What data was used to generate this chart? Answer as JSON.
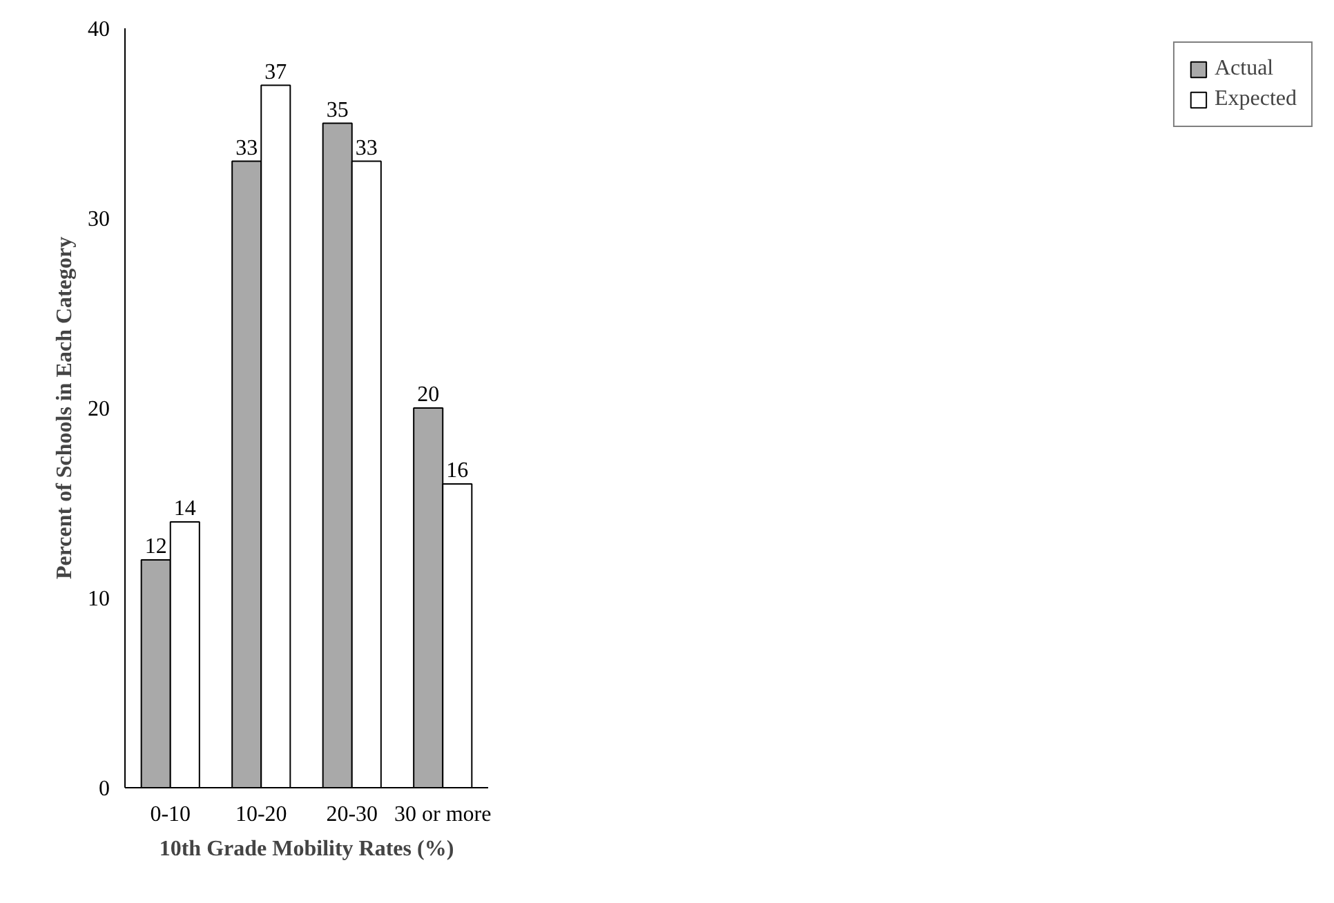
{
  "chart_data": {
    "type": "bar",
    "xlabel": "10th Grade Mobility Rates (%)",
    "ylabel": "Percent of Schools in Each Category",
    "categories": [
      "0-10",
      "10-20",
      "20-30",
      "30 or more"
    ],
    "series": [
      {
        "name": "Actual",
        "color": "#a9a9a9",
        "values": [
          12,
          33,
          35,
          20
        ]
      },
      {
        "name": "Expected",
        "color": "#ffffff",
        "values": [
          14,
          37,
          33,
          16
        ]
      }
    ],
    "ylim": [
      0,
      40
    ],
    "yticks": [
      0,
      10,
      20,
      30,
      40
    ],
    "grid": false,
    "legend": "right",
    "data_labels": true
  }
}
